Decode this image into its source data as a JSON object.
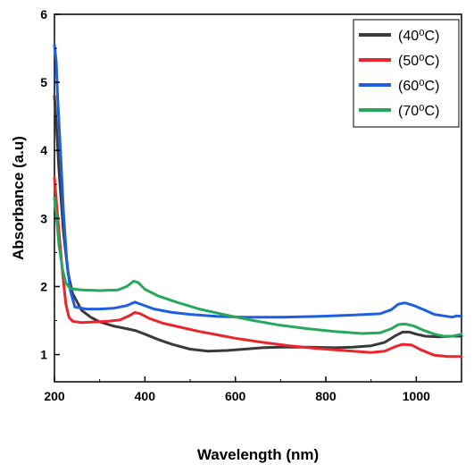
{
  "chart_data": {
    "type": "line",
    "xlabel": "Wavelength (nm)",
    "ylabel": "Absorbance (a.u)",
    "xlim": [
      200,
      1100
    ],
    "ylim": [
      0.6,
      6
    ],
    "x_ticks": [
      200,
      400,
      600,
      800,
      1000
    ],
    "y_ticks": [
      1,
      2,
      3,
      4,
      5,
      6
    ],
    "grid": false,
    "legend_position": "top-right",
    "series": [
      {
        "name": "(40⁰C)",
        "color": "#3a3a3a",
        "points": [
          [
            200,
            4.8
          ],
          [
            205,
            4.3
          ],
          [
            210,
            3.7
          ],
          [
            220,
            2.8
          ],
          [
            230,
            2.2
          ],
          [
            240,
            1.9
          ],
          [
            260,
            1.65
          ],
          [
            280,
            1.55
          ],
          [
            300,
            1.48
          ],
          [
            330,
            1.42
          ],
          [
            360,
            1.38
          ],
          [
            380,
            1.35
          ],
          [
            400,
            1.3
          ],
          [
            430,
            1.22
          ],
          [
            460,
            1.15
          ],
          [
            500,
            1.08
          ],
          [
            540,
            1.05
          ],
          [
            580,
            1.06
          ],
          [
            620,
            1.08
          ],
          [
            660,
            1.1
          ],
          [
            700,
            1.11
          ],
          [
            760,
            1.11
          ],
          [
            820,
            1.1
          ],
          [
            860,
            1.11
          ],
          [
            900,
            1.13
          ],
          [
            930,
            1.18
          ],
          [
            955,
            1.28
          ],
          [
            970,
            1.33
          ],
          [
            985,
            1.33
          ],
          [
            1000,
            1.3
          ],
          [
            1020,
            1.27
          ],
          [
            1050,
            1.26
          ],
          [
            1080,
            1.27
          ],
          [
            1100,
            1.27
          ]
        ]
      },
      {
        "name": "(50⁰C)",
        "color": "#e8262c",
        "points": [
          [
            200,
            3.6
          ],
          [
            205,
            3.2
          ],
          [
            210,
            2.8
          ],
          [
            218,
            2.2
          ],
          [
            225,
            1.75
          ],
          [
            232,
            1.55
          ],
          [
            240,
            1.49
          ],
          [
            260,
            1.47
          ],
          [
            290,
            1.48
          ],
          [
            320,
            1.49
          ],
          [
            345,
            1.51
          ],
          [
            365,
            1.57
          ],
          [
            378,
            1.62
          ],
          [
            390,
            1.6
          ],
          [
            410,
            1.53
          ],
          [
            440,
            1.46
          ],
          [
            480,
            1.4
          ],
          [
            520,
            1.34
          ],
          [
            560,
            1.29
          ],
          [
            600,
            1.24
          ],
          [
            660,
            1.18
          ],
          [
            720,
            1.13
          ],
          [
            780,
            1.09
          ],
          [
            840,
            1.06
          ],
          [
            900,
            1.03
          ],
          [
            930,
            1.05
          ],
          [
            955,
            1.12
          ],
          [
            970,
            1.15
          ],
          [
            990,
            1.14
          ],
          [
            1010,
            1.07
          ],
          [
            1040,
            0.99
          ],
          [
            1070,
            0.97
          ],
          [
            1100,
            0.97
          ]
        ]
      },
      {
        "name": "(60⁰C)",
        "color": "#1e5fe0",
        "points": [
          [
            200,
            5.55
          ],
          [
            204,
            5.3
          ],
          [
            207,
            4.8
          ],
          [
            210,
            4.4
          ],
          [
            214,
            3.9
          ],
          [
            220,
            3.1
          ],
          [
            227,
            2.4
          ],
          [
            235,
            1.95
          ],
          [
            245,
            1.7
          ],
          [
            270,
            1.67
          ],
          [
            300,
            1.67
          ],
          [
            330,
            1.68
          ],
          [
            360,
            1.72
          ],
          [
            378,
            1.77
          ],
          [
            395,
            1.73
          ],
          [
            420,
            1.67
          ],
          [
            460,
            1.62
          ],
          [
            500,
            1.59
          ],
          [
            560,
            1.56
          ],
          [
            620,
            1.55
          ],
          [
            700,
            1.55
          ],
          [
            780,
            1.56
          ],
          [
            860,
            1.58
          ],
          [
            920,
            1.6
          ],
          [
            945,
            1.66
          ],
          [
            960,
            1.74
          ],
          [
            975,
            1.76
          ],
          [
            995,
            1.72
          ],
          [
            1020,
            1.65
          ],
          [
            1040,
            1.59
          ],
          [
            1060,
            1.57
          ],
          [
            1080,
            1.55
          ],
          [
            1090,
            1.57
          ],
          [
            1100,
            1.56
          ]
        ]
      },
      {
        "name": "(70⁰C)",
        "color": "#27a85c",
        "points": [
          [
            200,
            3.3
          ],
          [
            205,
            3.0
          ],
          [
            210,
            2.6
          ],
          [
            218,
            2.25
          ],
          [
            225,
            2.05
          ],
          [
            235,
            1.97
          ],
          [
            260,
            1.95
          ],
          [
            300,
            1.94
          ],
          [
            340,
            1.95
          ],
          [
            360,
            2.0
          ],
          [
            375,
            2.08
          ],
          [
            385,
            2.06
          ],
          [
            400,
            1.96
          ],
          [
            430,
            1.86
          ],
          [
            470,
            1.77
          ],
          [
            520,
            1.67
          ],
          [
            580,
            1.58
          ],
          [
            640,
            1.5
          ],
          [
            700,
            1.43
          ],
          [
            760,
            1.38
          ],
          [
            820,
            1.34
          ],
          [
            880,
            1.31
          ],
          [
            920,
            1.32
          ],
          [
            945,
            1.38
          ],
          [
            960,
            1.44
          ],
          [
            975,
            1.45
          ],
          [
            995,
            1.42
          ],
          [
            1015,
            1.36
          ],
          [
            1040,
            1.3
          ],
          [
            1060,
            1.27
          ],
          [
            1080,
            1.27
          ],
          [
            1100,
            1.3
          ]
        ]
      }
    ]
  }
}
